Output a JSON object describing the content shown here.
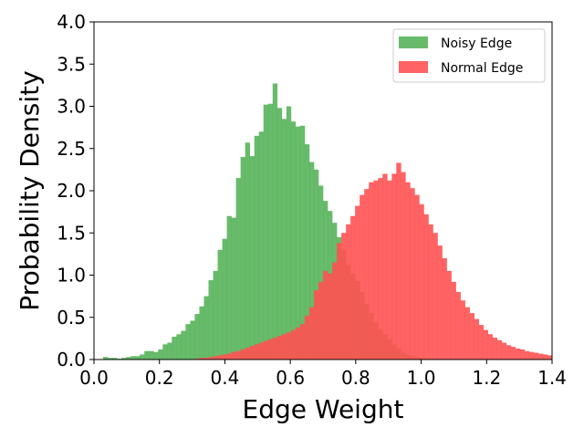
{
  "chart_data": {
    "type": "histogram",
    "xlabel": "Edge Weight",
    "ylabel": "Probability Density",
    "xlim": [
      0.0,
      1.4
    ],
    "ylim": [
      0.0,
      4.0
    ],
    "x_ticks": [
      "0.0",
      "0.2",
      "0.4",
      "0.6",
      "0.8",
      "1.0",
      "1.2",
      "1.4"
    ],
    "y_ticks": [
      "0.0",
      "0.5",
      "1.0",
      "1.5",
      "2.0",
      "2.5",
      "3.0",
      "3.5",
      "4.0"
    ],
    "grid": false,
    "legend_position": "top-right",
    "bin_width": 0.014,
    "series": [
      {
        "name": "Noisy Edge",
        "color": "#4caf50",
        "alpha": 0.85,
        "bins": [
          [
            0.028,
            0.03
          ],
          [
            0.042,
            0.02
          ],
          [
            0.056,
            0.02
          ],
          [
            0.07,
            0.01
          ],
          [
            0.084,
            0.02
          ],
          [
            0.098,
            0.03
          ],
          [
            0.112,
            0.04
          ],
          [
            0.126,
            0.04
          ],
          [
            0.14,
            0.06
          ],
          [
            0.154,
            0.1
          ],
          [
            0.168,
            0.1
          ],
          [
            0.182,
            0.09
          ],
          [
            0.196,
            0.12
          ],
          [
            0.21,
            0.18
          ],
          [
            0.224,
            0.2
          ],
          [
            0.238,
            0.27
          ],
          [
            0.252,
            0.3
          ],
          [
            0.266,
            0.34
          ],
          [
            0.28,
            0.42
          ],
          [
            0.294,
            0.46
          ],
          [
            0.308,
            0.54
          ],
          [
            0.322,
            0.63
          ],
          [
            0.336,
            0.75
          ],
          [
            0.35,
            0.94
          ],
          [
            0.364,
            1.05
          ],
          [
            0.378,
            1.3
          ],
          [
            0.392,
            1.43
          ],
          [
            0.406,
            1.7
          ],
          [
            0.42,
            1.68
          ],
          [
            0.434,
            2.15
          ],
          [
            0.448,
            2.4
          ],
          [
            0.462,
            2.57
          ],
          [
            0.476,
            2.41
          ],
          [
            0.49,
            2.65
          ],
          [
            0.504,
            2.7
          ],
          [
            0.518,
            3.02
          ],
          [
            0.532,
            3.03
          ],
          [
            0.546,
            3.27
          ],
          [
            0.56,
            2.98
          ],
          [
            0.574,
            2.85
          ],
          [
            0.588,
            3.0
          ],
          [
            0.602,
            2.82
          ],
          [
            0.616,
            2.76
          ],
          [
            0.63,
            2.77
          ],
          [
            0.644,
            2.55
          ],
          [
            0.658,
            2.34
          ],
          [
            0.672,
            2.25
          ],
          [
            0.686,
            2.06
          ],
          [
            0.7,
            1.88
          ],
          [
            0.714,
            1.76
          ],
          [
            0.728,
            1.62
          ],
          [
            0.742,
            1.45
          ],
          [
            0.756,
            1.3
          ],
          [
            0.77,
            1.12
          ],
          [
            0.784,
            1.02
          ],
          [
            0.798,
            0.93
          ],
          [
            0.812,
            0.8
          ],
          [
            0.826,
            0.66
          ],
          [
            0.84,
            0.55
          ],
          [
            0.854,
            0.44
          ],
          [
            0.868,
            0.36
          ],
          [
            0.882,
            0.3
          ],
          [
            0.896,
            0.24
          ],
          [
            0.91,
            0.18
          ],
          [
            0.924,
            0.13
          ],
          [
            0.938,
            0.09
          ],
          [
            0.952,
            0.06
          ],
          [
            0.966,
            0.04
          ],
          [
            0.98,
            0.03
          ],
          [
            0.994,
            0.02
          ],
          [
            1.008,
            0.01
          ]
        ]
      },
      {
        "name": "Normal Edge",
        "color": "#ff5252",
        "alpha": 0.9,
        "bins": [
          [
            0.308,
            0.01
          ],
          [
            0.322,
            0.02
          ],
          [
            0.336,
            0.02
          ],
          [
            0.35,
            0.03
          ],
          [
            0.364,
            0.04
          ],
          [
            0.378,
            0.05
          ],
          [
            0.392,
            0.06
          ],
          [
            0.406,
            0.07
          ],
          [
            0.42,
            0.09
          ],
          [
            0.434,
            0.1
          ],
          [
            0.448,
            0.12
          ],
          [
            0.462,
            0.14
          ],
          [
            0.476,
            0.16
          ],
          [
            0.49,
            0.18
          ],
          [
            0.504,
            0.2
          ],
          [
            0.518,
            0.22
          ],
          [
            0.532,
            0.24
          ],
          [
            0.546,
            0.26
          ],
          [
            0.56,
            0.28
          ],
          [
            0.574,
            0.3
          ],
          [
            0.588,
            0.32
          ],
          [
            0.602,
            0.35
          ],
          [
            0.616,
            0.38
          ],
          [
            0.63,
            0.42
          ],
          [
            0.644,
            0.52
          ],
          [
            0.658,
            0.62
          ],
          [
            0.672,
            0.82
          ],
          [
            0.686,
            0.92
          ],
          [
            0.7,
            1.05
          ],
          [
            0.714,
            1.02
          ],
          [
            0.728,
            1.15
          ],
          [
            0.742,
            1.38
          ],
          [
            0.756,
            1.5
          ],
          [
            0.77,
            1.6
          ],
          [
            0.784,
            1.7
          ],
          [
            0.798,
            1.82
          ],
          [
            0.812,
            1.95
          ],
          [
            0.826,
            2.02
          ],
          [
            0.84,
            2.1
          ],
          [
            0.854,
            2.12
          ],
          [
            0.868,
            2.15
          ],
          [
            0.882,
            2.2
          ],
          [
            0.896,
            2.12
          ],
          [
            0.91,
            2.2
          ],
          [
            0.924,
            2.33
          ],
          [
            0.938,
            2.22
          ],
          [
            0.952,
            2.1
          ],
          [
            0.966,
            2.03
          ],
          [
            0.98,
            1.95
          ],
          [
            0.994,
            1.84
          ],
          [
            1.008,
            1.72
          ],
          [
            1.022,
            1.6
          ],
          [
            1.036,
            1.5
          ],
          [
            1.05,
            1.35
          ],
          [
            1.064,
            1.2
          ],
          [
            1.078,
            1.05
          ],
          [
            1.092,
            0.92
          ],
          [
            1.106,
            0.8
          ],
          [
            1.12,
            0.7
          ],
          [
            1.134,
            0.62
          ],
          [
            1.148,
            0.55
          ],
          [
            1.162,
            0.48
          ],
          [
            1.176,
            0.41
          ],
          [
            1.19,
            0.35
          ],
          [
            1.204,
            0.3
          ],
          [
            1.218,
            0.26
          ],
          [
            1.232,
            0.23
          ],
          [
            1.246,
            0.2
          ],
          [
            1.26,
            0.17
          ],
          [
            1.274,
            0.15
          ],
          [
            1.288,
            0.13
          ],
          [
            1.302,
            0.12
          ],
          [
            1.316,
            0.1
          ],
          [
            1.33,
            0.09
          ],
          [
            1.344,
            0.08
          ],
          [
            1.358,
            0.07
          ],
          [
            1.372,
            0.06
          ],
          [
            1.386,
            0.05
          ]
        ]
      }
    ]
  }
}
